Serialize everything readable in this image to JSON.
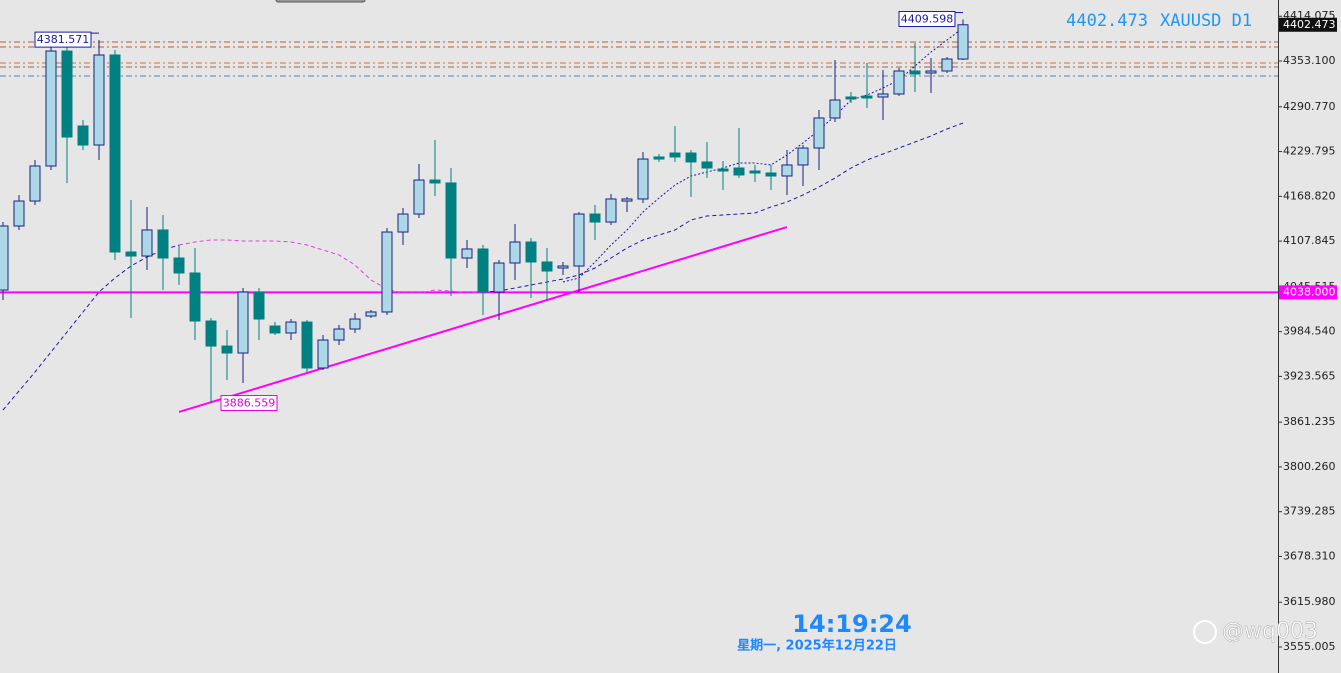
{
  "chart_data": {
    "type": "candlestick",
    "last_price": 4402.473,
    "symbol": "XAUUSD D1",
    "open": [
      4041.2,
      4128.4,
      4162.4,
      4210.1,
      4366.7,
      4264.6,
      4238.7,
      4361.3,
      4093.0,
      4087.5,
      4123.0,
      4084.8,
      4064.4,
      3999.0,
      3964.9,
      3955.4,
      4038.5,
      3992.2,
      3982.7,
      3997.6,
      3935.0,
      3973.1,
      3988.1,
      4005.8,
      4011.3,
      4120.2,
      4144.7,
      4191.0,
      4187.0,
      4084.8,
      4097.1,
      4038.5,
      4078.0,
      4106.6,
      4079.4,
      4071.2,
      4073.9,
      4144.7,
      4133.8,
      4162.4,
      4165.2,
      4222.4,
      4227.8,
      4227.8,
      4215.6,
      4206.0,
      4207.4,
      4203.3,
      4200.6,
      4196.5,
      4211.5,
      4234.6,
      4275.5,
      4304.1,
      4305.4,
      4304.1,
      4308.2,
      4339.5,
      4336.8,
      4339.5,
      4355.8
    ],
    "high": [
      4133.8,
      4170.6,
      4218.3,
      4374.9,
      4374.9,
      4272.8,
      4381.6,
      4368.1,
      4163.8,
      4154.3,
      4143.4,
      4102.5,
      4098.4,
      4003.1,
      3986.7,
      4043.9,
      4043.9,
      3997.6,
      4001.7,
      4000.4,
      3979.9,
      3993.6,
      4009.9,
      4014.0,
      4125.7,
      4152.9,
      4212.8,
      4245.5,
      4207.4,
      4109.3,
      4102.5,
      4082.1,
      4131.1,
      4112.0,
      4098.4,
      4079.4,
      4147.5,
      4157.0,
      4172.0,
      4167.9,
      4229.2,
      4226.5,
      4264.6,
      4231.9,
      4242.8,
      4216.9,
      4261.9,
      4211.5,
      4211.5,
      4231.9,
      4238.7,
      4286.4,
      4354.5,
      4310.9,
      4350.4,
      4340.9,
      4343.6,
      4377.6,
      4357.2,
      4358.6,
      4409.6
    ],
    "low": [
      4027.6,
      4123.0,
      4157.0,
      4204.7,
      4187.0,
      4231.9,
      4218.3,
      4082.1,
      4003.1,
      4068.5,
      4041.2,
      4048.0,
      3973.1,
      3886.6,
      3918.6,
      3914.6,
      3973.1,
      3979.9,
      3973.1,
      3929.5,
      3932.3,
      3966.3,
      3982.7,
      4003.1,
      4007.2,
      4102.5,
      4139.3,
      4169.2,
      4033.0,
      4071.2,
      4007.2,
      4000.4,
      4054.8,
      4030.3,
      4027.6,
      4061.6,
      4038.5,
      4109.3,
      4129.8,
      4147.5,
      4159.7,
      4215.6,
      4215.6,
      4167.9,
      4193.8,
      4177.4,
      4193.8,
      4188.3,
      4177.4,
      4170.6,
      4182.9,
      4204.7,
      4270.0,
      4295.9,
      4289.1,
      4272.8,
      4305.4,
      4310.9,
      4309.5,
      4336.8,
      4354.5
    ],
    "close": [
      4128.4,
      4162.4,
      4210.1,
      4366.7,
      4249.6,
      4238.7,
      4361.3,
      4093.0,
      4087.5,
      4123.0,
      4084.8,
      4064.4,
      3999.0,
      3964.9,
      3955.4,
      4038.5,
      4001.7,
      3982.7,
      3997.6,
      3935.0,
      3973.1,
      3988.1,
      4001.7,
      4011.3,
      4120.2,
      4144.7,
      4191.0,
      4187.0,
      4084.8,
      4097.1,
      4038.5,
      4078.0,
      4106.6,
      4079.4,
      4067.1,
      4073.9,
      4144.7,
      4133.8,
      4165.2,
      4165.2,
      4219.6,
      4219.6,
      4222.4,
      4215.6,
      4207.4,
      4203.3,
      4197.9,
      4200.6,
      4196.5,
      4211.5,
      4234.6,
      4275.5,
      4300.0,
      4301.4,
      4302.7,
      4308.2,
      4339.5,
      4335.4,
      4339.5,
      4355.8,
      4402.473
    ],
    "up_color": "#add8e6",
    "up_edge": "#1a237e",
    "down_color": "#008080",
    "series": [
      {
        "color": "#1a1aa6",
        "dash": "4,3",
        "values": [
          3877.8,
          3903.7,
          3929.5,
          3956.8,
          3984.0,
          4011.3,
          4038.5,
          4057.6,
          4073.9,
          4086.2,
          4095.7,
          4102.5,
          null,
          null,
          null,
          null,
          null,
          null,
          null,
          null,
          null,
          null,
          null,
          null,
          null,
          null,
          null,
          null,
          null,
          null,
          4038.5,
          4039.9,
          4043.9,
          4048.0,
          4052.1,
          4056.2,
          4061.6,
          4071.2,
          4084.8,
          4098.4,
          4109.3,
          4116.1,
          4123.0,
          4136.6,
          4142.0,
          4143.4,
          4144.7,
          4146.1,
          4154.3,
          4161.1,
          4170.6,
          4181.5,
          4193.8,
          4207.4,
          4218.3,
          4226.5,
          4234.6,
          4242.8,
          4251.0,
          4260.5,
          4268.7
        ]
      },
      {
        "color": "#e040e0",
        "dash": "4,3",
        "values": [
          null,
          null,
          null,
          null,
          null,
          null,
          null,
          null,
          null,
          null,
          null,
          4102.5,
          4106.6,
          4109.3,
          4109.3,
          4108.0,
          4108.0,
          4108.0,
          4106.6,
          4102.5,
          4095.7,
          4088.9,
          4075.3,
          4054.8,
          4042.6,
          4037.1,
          4037.1,
          4041.2,
          4039.9,
          4037.1,
          4038.5,
          null,
          null,
          null,
          null,
          null,
          null,
          null,
          null,
          null,
          null,
          null,
          null,
          null,
          null,
          null,
          null,
          null,
          null,
          null,
          null,
          null,
          null,
          null,
          null,
          null,
          null,
          null,
          null,
          null,
          null
        ]
      },
      {
        "color": "#1a1aa6",
        "dash": "2,2",
        "values": [
          null,
          null,
          null,
          null,
          null,
          null,
          null,
          null,
          null,
          null,
          null,
          null,
          null,
          null,
          null,
          null,
          null,
          null,
          null,
          null,
          null,
          null,
          null,
          null,
          null,
          null,
          null,
          null,
          null,
          null,
          null,
          null,
          null,
          null,
          null,
          4052.1,
          4057.6,
          4079.4,
          4102.5,
          4123.0,
          4147.5,
          4166.5,
          4184.2,
          4196.5,
          4202.0,
          4207.4,
          4214.2,
          4214.2,
          4211.5,
          4225.1,
          4241.4,
          4259.1,
          4278.2,
          4300.0,
          4306.8,
          4316.3,
          4327.2,
          4346.3,
          4365.4,
          4381.7,
          4398.1
        ]
      }
    ],
    "levels": [
      {
        "value": 4379.0,
        "color": "#b0603a"
      },
      {
        "value": 4372.2,
        "color": "#b0603a"
      },
      {
        "value": 4350.4,
        "color": "#c07a50"
      },
      {
        "value": 4344.9,
        "color": "#b0603a"
      },
      {
        "value": 4332.7,
        "color": "#6080b0"
      }
    ],
    "hline": {
      "value": 4038.0,
      "label": "4038.000",
      "color": "#ff00ff"
    },
    "trendline": {
      "x": [
        11,
        49
      ],
      "y": [
        3875.1,
        4127.0
      ],
      "color": "#ff00ff"
    },
    "annotations": [
      {
        "value": 4381.571,
        "index": 6,
        "color": "#1a1aa6"
      },
      {
        "value": 4409.598,
        "index": 60,
        "color": "#1a1aa6"
      },
      {
        "value": 3886.559,
        "index": 13,
        "color": "#e000e0"
      }
    ],
    "ylim": [
      3519.6,
      4436.2
    ],
    "yticks": [
      {
        "value": 4414.075,
        "label": "4414.075"
      },
      {
        "value": 4353.1,
        "label": "4353.100"
      },
      {
        "value": 4290.77,
        "label": "4290.770"
      },
      {
        "value": 4229.795,
        "label": "4229.795"
      },
      {
        "value": 4168.82,
        "label": "4168.820"
      },
      {
        "value": 4107.845,
        "label": "4107.845"
      },
      {
        "value": 4045.515,
        "label": "4045.515"
      },
      {
        "value": 3984.54,
        "label": "3984.540"
      },
      {
        "value": 3923.565,
        "label": "3923.565"
      },
      {
        "value": 3861.235,
        "label": "3861.235"
      },
      {
        "value": 3800.26,
        "label": "3800.260"
      },
      {
        "value": 3739.285,
        "label": "3739.285"
      },
      {
        "value": 3678.31,
        "label": "3678.310"
      },
      {
        "value": 3615.98,
        "label": "3615.980"
      },
      {
        "value": 3555.005,
        "label": "3555.005"
      }
    ],
    "time": "14:19:24",
    "date": "星期一, 2025年12月22日",
    "watermark": "@wq003"
  }
}
